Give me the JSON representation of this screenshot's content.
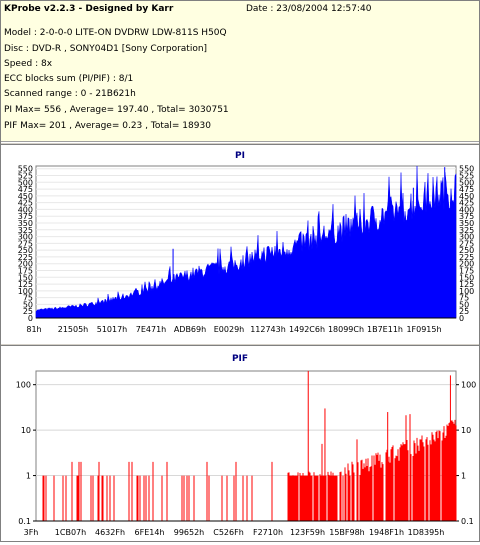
{
  "header": {
    "title": "KProbe v2.2.3 - Designed by Karr",
    "date": "Date : 23/08/2004 12:57:40",
    "lines": [
      "Model : 2-0-0-0 LITE-ON DVDRW LDW-811S   H50Q",
      "Disc : DVD-R , SONY04D1 [Sony Corporation]",
      "Speed : 8x",
      "ECC blocks sum (PI/PIF) : 8/1",
      "Scanned range : 0 - 21B621h",
      "PI Max= 556 , Average= 197.40 , Total= 3030751",
      "PIF Max= 201 , Average= 0.23 , Total= 18930"
    ]
  },
  "colors": {
    "pi": "#0000ff",
    "pif": "#ff0000",
    "header_bg": "#ffffe1",
    "plot_bg": "#ffffff"
  },
  "chart_data": [
    {
      "type": "area",
      "title": "PI",
      "y_ticks": [
        0,
        25,
        50,
        75,
        100,
        125,
        150,
        175,
        200,
        225,
        250,
        275,
        300,
        325,
        350,
        375,
        400,
        425,
        450,
        475,
        500,
        525,
        550
      ],
      "ylim": [
        0,
        560
      ],
      "x_tick_labels": [
        "81h",
        "21505h",
        "51017h",
        "7E471h",
        "ADB69h",
        "E0029h",
        "112743h",
        "1492C6h",
        "18099Ch",
        "1B7E11h",
        "1F0915h"
      ],
      "x_range": [
        0,
        2209313
      ],
      "series": [
        {
          "x": [
            0,
            131072,
            262144,
            393216,
            524288,
            655360,
            786432,
            917504,
            1048576,
            1179648,
            1310720,
            1441792,
            1572864,
            1703936,
            1835008,
            1966080,
            2097152,
            2209313
          ],
          "y": [
            30,
            38,
            50,
            68,
            95,
            130,
            160,
            185,
            205,
            240,
            260,
            300,
            330,
            360,
            395,
            430,
            470,
            500
          ]
        }
      ],
      "peaks": [
        {
          "x": 721000,
          "y": 255
        },
        {
          "x": 1985000,
          "y": 480
        },
        {
          "x": 2150000,
          "y": 556
        }
      ]
    },
    {
      "type": "bar",
      "title": "PIF",
      "y_scale": "log",
      "y_ticks": [
        "0.1",
        "1",
        "10",
        "100"
      ],
      "ylim": [
        0.1,
        200
      ],
      "x_tick_labels": [
        "3Fh",
        "1CB07h",
        "4632Fh",
        "6FE14h",
        "99652h",
        "C526Fh",
        "F2710h",
        "123F59h",
        "15BF98h",
        "1948F1h",
        "1D8395h"
      ],
      "x_range": [
        0,
        2209313
      ],
      "series": [
        {
          "x": [
            0,
            131072,
            262144,
            393216,
            524288,
            655360,
            786432,
            917504,
            1048576,
            1179648,
            1310720,
            1441792,
            1572864,
            1703936,
            1835008,
            1966080,
            2097152,
            2209313
          ],
          "y": [
            1,
            1,
            1,
            1,
            1,
            1,
            1,
            1,
            1,
            1,
            1,
            1,
            1,
            2,
            3,
            5,
            8,
            14
          ]
        }
      ],
      "peaks": [
        {
          "x": 1432000,
          "y": 201
        },
        {
          "x": 2180000,
          "y": 160
        },
        {
          "x": 1520000,
          "y": 30
        },
        {
          "x": 1850000,
          "y": 25
        }
      ]
    }
  ]
}
